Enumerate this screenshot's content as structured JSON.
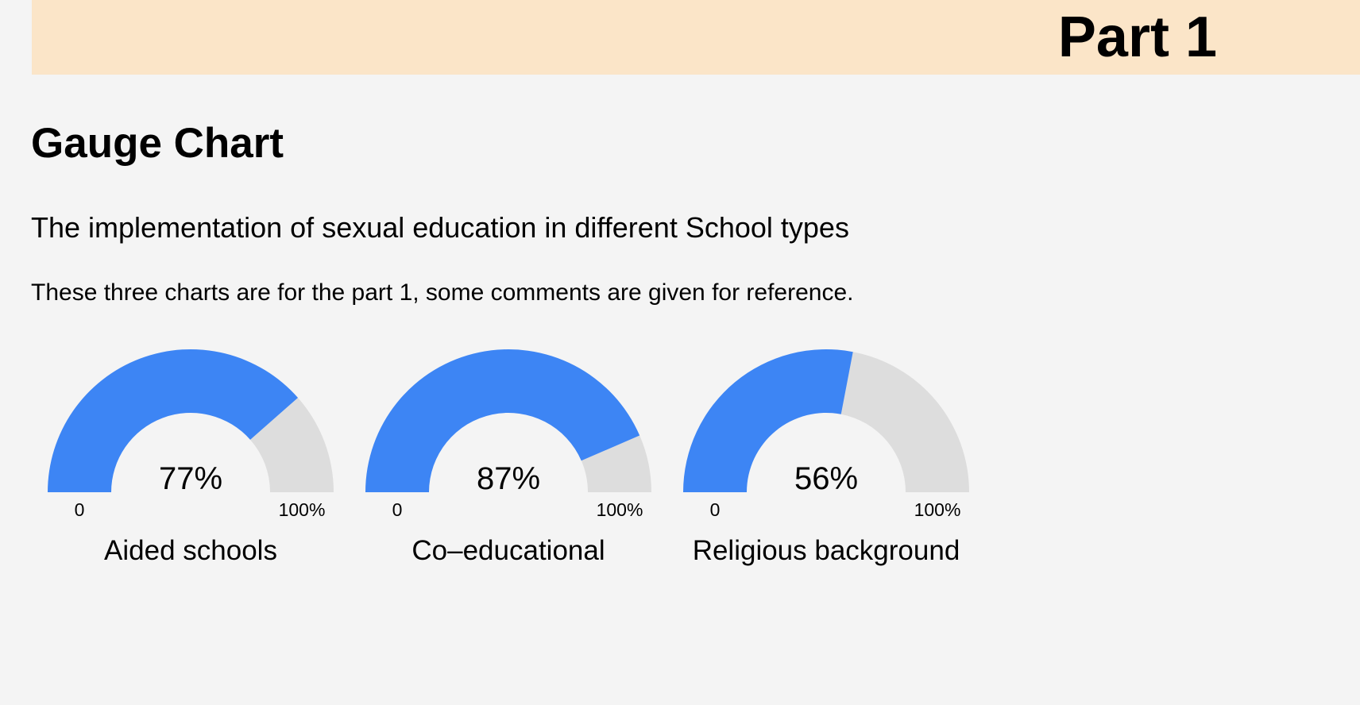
{
  "header": {
    "title": "Part 1"
  },
  "section_title": "Gauge Chart",
  "subtitle": "The implementation of sexual education in different School types",
  "note": "These three charts are for the part 1, some comments are given for reference.",
  "colors": {
    "fill": "#3d85f4",
    "track": "#dddddd",
    "header_bg": "#fbe5c8",
    "page_bg": "#f4f4f4"
  },
  "chart_data": [
    {
      "type": "gauge",
      "label": "Aided schools",
      "value": 77,
      "value_text": "77%",
      "min_label": "0",
      "max_label": "100%",
      "range": [
        0,
        100
      ]
    },
    {
      "type": "gauge",
      "label": "Co–educational",
      "value": 87,
      "value_text": "87%",
      "min_label": "0",
      "max_label": "100%",
      "range": [
        0,
        100
      ]
    },
    {
      "type": "gauge",
      "label": "Religious background",
      "value": 56,
      "value_text": "56%",
      "min_label": "0",
      "max_label": "100%",
      "range": [
        0,
        100
      ]
    }
  ]
}
